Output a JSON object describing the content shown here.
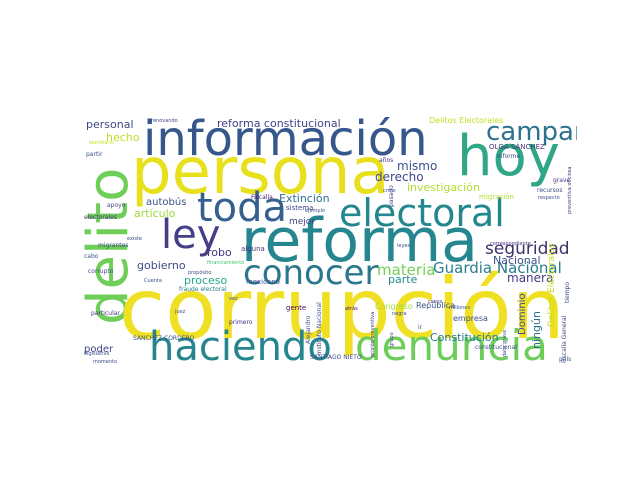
{
  "words": {
    "corrupcion": {
      "text": "corrupción",
      "color": "#f0e024"
    },
    "delito": {
      "text": "delito",
      "color": "#6ece58"
    },
    "reforma": {
      "text": "reforma",
      "color": "#26868f"
    },
    "persona": {
      "text": "persona",
      "color": "#e8e01c"
    },
    "informacion": {
      "text": "información",
      "color": "#35578c"
    },
    "hoy": {
      "text": "hoy",
      "color": "#2fa686"
    },
    "haciendo": {
      "text": "haciendo",
      "color": "#25858e"
    },
    "denuncia": {
      "text": "denuncia",
      "color": "#6cce59"
    },
    "toda": {
      "text": "toda",
      "color": "#355f8d"
    },
    "electoral": {
      "text": "electoral",
      "color": "#23888e"
    },
    "ley": {
      "text": "ley",
      "color": "#433e85"
    },
    "conocer": {
      "text": "conocer",
      "color": "#2a778e"
    },
    "campana": {
      "text": "campaña",
      "color": "#2c728e"
    },
    "seguridad": {
      "text": "seguridad",
      "color": "#40306b"
    },
    "guardia_nacional": {
      "text": "Guardia Nacional",
      "color": "#287d8e"
    },
    "materia": {
      "text": "materia",
      "color": "#73d055"
    },
    "reforma_const": {
      "text": "reforma constitucional",
      "color": "#414487"
    },
    "mismo": {
      "text": "mismo",
      "color": "#3b528b"
    },
    "derecho": {
      "text": "derecho",
      "color": "#3f4788"
    },
    "investigacion": {
      "text": "investigación",
      "color": "#b4de2c"
    },
    "extincion": {
      "text": "Extinción",
      "color": "#2d708e"
    },
    "nacional": {
      "text": "Nacional",
      "color": "#3b528b"
    },
    "manera": {
      "text": "manera",
      "color": "#443983"
    },
    "parte": {
      "text": "parte",
      "color": "#238a8d"
    },
    "proceso": {
      "text": "proceso",
      "color": "#26a984"
    },
    "gobierno": {
      "text": "gobierno",
      "color": "#3e4989"
    },
    "robo": {
      "text": "robo",
      "color": "#453781"
    },
    "mejor": {
      "text": "mejor",
      "color": "#414487"
    },
    "articulo": {
      "text": "artículo",
      "color": "#9cd93b"
    },
    "autobus": {
      "text": "autobús",
      "color": "#3b528b"
    },
    "hecho": {
      "text": "hecho",
      "color": "#bddf26"
    },
    "personal": {
      "text": "personal",
      "color": "#3e4a89"
    },
    "constitucion": {
      "text": "Constitución",
      "color": "#2a778e"
    },
    "dominio": {
      "text": "Dominio",
      "color": "#3e4a89"
    },
    "ningun": {
      "text": "ningún",
      "color": "#2d708e"
    },
    "poder": {
      "text": "poder",
      "color": "#414487"
    },
    "delitos_elect": {
      "text": "Delitos Electorales",
      "color": "#c2df23"
    },
    "olga": {
      "text": "OLGA SÁNCHEZ",
      "color": "#46337e"
    },
    "sistema": {
      "text": "sistema",
      "color": "#3f4889"
    },
    "alguna": {
      "text": "alguna",
      "color": "#46327e"
    },
    "republica": {
      "text": "República",
      "color": "#39558c"
    },
    "empresa": {
      "text": "empresa",
      "color": "#3c508b"
    },
    "congreso": {
      "text": "Congreso",
      "color": "#a5db36"
    },
    "migracion": {
      "text": "migración",
      "color": "#b5de2b"
    },
    "mexicano": {
      "text": "mexicano",
      "color": "#3b528b"
    },
    "gente": {
      "text": "gente",
      "color": "#46085c"
    },
    "primero": {
      "text": "primero",
      "color": "#46307e"
    },
    "sanchez_cordero": {
      "text": "SÁNCHEZ CORDERO",
      "color": "#3b528b"
    },
    "santiago": {
      "text": "SANTIAGO NIETO",
      "color": "#3e4a89"
    },
    "constitucional": {
      "text": "constitucional",
      "color": "#3d4e8a"
    },
    "apoyo": {
      "text": "apoyo",
      "color": "#3f4889"
    },
    "electorales": {
      "text": "electorales",
      "color": "#46337e"
    },
    "migrantes": {
      "text": "migrantes",
      "color": "#3e4989"
    },
    "cabo": {
      "text": "cabo",
      "color": "#3b528b"
    },
    "corrupto": {
      "text": "corrupto",
      "color": "#3d4e8a"
    },
    "particular": {
      "text": "particular",
      "color": "#46337e"
    },
    "legislativo": {
      "text": "legislativo",
      "color": "#3f4788"
    },
    "momento": {
      "text": "momento",
      "color": "#3e4a89"
    },
    "partir": {
      "text": "partir",
      "color": "#3b528b"
    },
    "secretario": {
      "text": "secretario",
      "color": "#c8e020"
    },
    "renovando": {
      "text": "renovando",
      "color": "#3f4788"
    },
    "fraude": {
      "text": "fraude electoral",
      "color": "#2a788e"
    },
    "cuenta": {
      "text": "Cuenta",
      "color": "#3b528b"
    },
    "proposito": {
      "text": "propósito",
      "color": "#3e4a89"
    },
    "financiamiento": {
      "text": "financiamiento",
      "color": "#4ac16d"
    },
    "existe": {
      "text": "existe",
      "color": "#3e4a89"
    },
    "fiscalia": {
      "text": "Fiscalía",
      "color": "#48186a"
    },
    "crmo": {
      "text": "crmo",
      "color": "#3b528b"
    },
    "pasado": {
      "text": "pasado",
      "color": "#3f4889"
    },
    "recursos": {
      "text": "recursos",
      "color": "#3e4989"
    },
    "grave": {
      "text": "grave",
      "color": "#46327e"
    },
    "respecto": {
      "text": "respecto",
      "color": "#3b528b"
    },
    "informe": {
      "text": "informe",
      "color": "#3e4a89"
    },
    "anos": {
      "text": "años",
      "color": "#46337e"
    },
    "ejemplo": {
      "text": "ejemplo",
      "color": "#3b528b"
    },
    "leyes": {
      "text": "leyes",
      "color": "#3e4989"
    },
    "negra": {
      "text": "negra",
      "color": "#3e4a89"
    },
    "millones": {
      "text": "millones",
      "color": "#3b528b"
    },
    "casos": {
      "text": "casos",
      "color": "#46337e"
    },
    "ir": {
      "text": "ir",
      "color": "#3e4989"
    },
    "atras": {
      "text": "atrás",
      "color": "#46085c"
    },
    "juez": {
      "text": "juez",
      "color": "#3e4a89"
    },
    "vez": {
      "text": "vez",
      "color": "#3b528b"
    },
    "correspondiente": {
      "text": "correspondiente",
      "color": "#46337e"
    },
    "instituto": {
      "text": "Instituto Nacional",
      "color": "#3e4a89"
    },
    "alejandro": {
      "text": "Alejandro",
      "color": "#3b528b"
    },
    "fiscalia_general": {
      "text": "Fiscalía General",
      "color": "#3e4989"
    },
    "prision": {
      "text": "prisión preventiva",
      "color": "#46337e"
    },
    "tiempo": {
      "text": "tiempo",
      "color": "#3e4a89"
    },
    "pais": {
      "text": "país",
      "color": "#3b528b"
    },
    "grupo": {
      "text": "grupo",
      "color": "#3e4989"
    },
    "dato_grave": {
      "text": "dato grave",
      "color": "#3b528b"
    },
    "preventiva_of": {
      "text": "preventiva oficiosa",
      "color": "#46337e"
    }
  }
}
